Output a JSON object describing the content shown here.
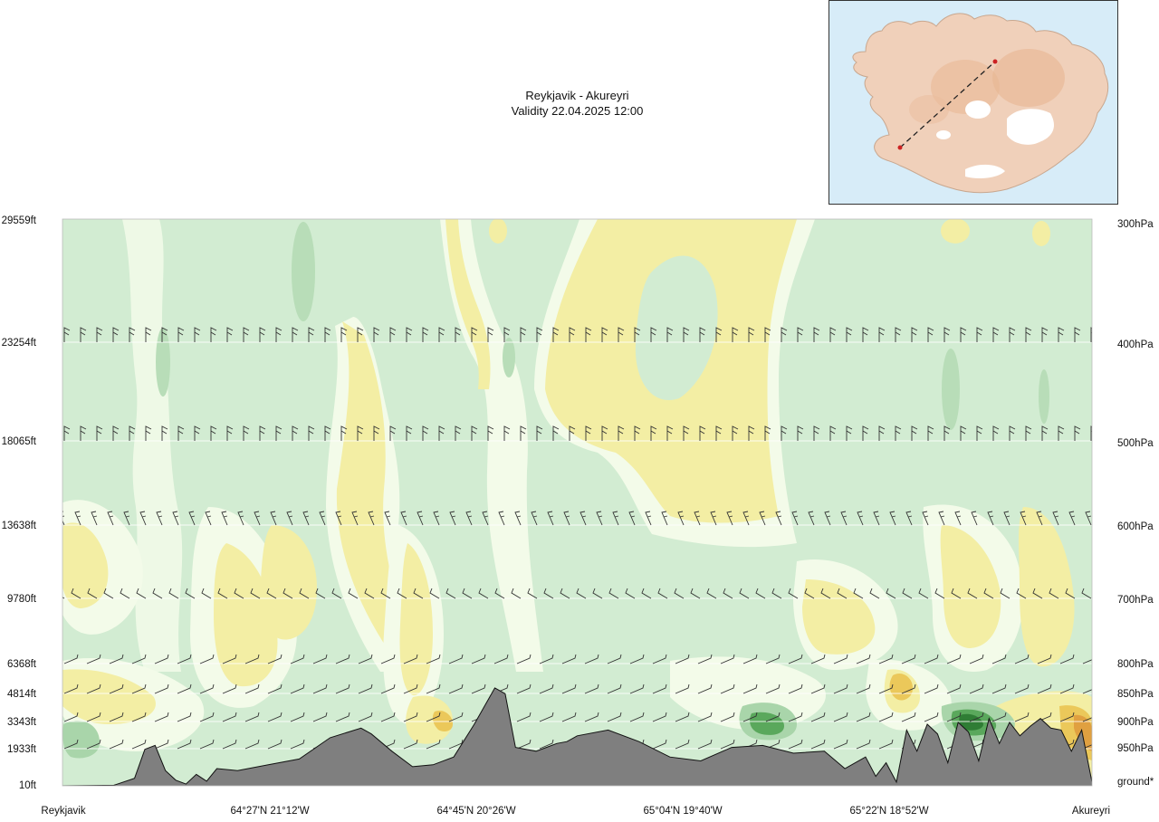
{
  "header": {
    "route": "Reykjavik - Akureyri",
    "validity": "Validity 22.04.2025 12:00"
  },
  "colors": {
    "background_field": "#d2ecd2",
    "light_band": "#f3fbe9",
    "white_band": "#fcfdf3",
    "yellow_band": "#f3eea4",
    "dark_green": "#a9d5aa",
    "terrain": "#7f7f7f",
    "map_water": "#d7ecf8",
    "map_land": "#f0d0ba",
    "route_marker": "#cc2222"
  },
  "inset_map": {
    "icon": "iceland-route-map"
  },
  "chart_data": {
    "type": "area",
    "title": "Reykjavik - Akureyri",
    "subtitle": "Validity 22.04.2025 12:00",
    "left_axis_labels": [
      "29559ft",
      "23254ft",
      "18065ft",
      "13638ft",
      "9780ft",
      "6368ft",
      "4814ft",
      "3343ft",
      "1933ft",
      "10ft"
    ],
    "right_axis_labels": [
      "300hPa",
      "400hPa",
      "500hPa",
      "600hPa",
      "700hPa",
      "800hPa",
      "850hPa",
      "900hPa",
      "950hPa",
      "ground*"
    ],
    "altitude_ft": [
      29559,
      23254,
      18065,
      13638,
      9780,
      6368,
      4814,
      3343,
      1933,
      10
    ],
    "x_labels": [
      "Reykjavik",
      "64°27'N 21°12'W",
      "64°45'N 20°26'W",
      "65°04'N 19°40'W",
      "65°22'N 18°52'W",
      "Akureyri"
    ],
    "terrain_profile": {
      "x_fraction": [
        0,
        0.05,
        0.07,
        0.08,
        0.09,
        0.1,
        0.11,
        0.12,
        0.13,
        0.14,
        0.15,
        0.17,
        0.2,
        0.23,
        0.26,
        0.29,
        0.3,
        0.32,
        0.34,
        0.36,
        0.38,
        0.4,
        0.42,
        0.43,
        0.44,
        0.46,
        0.47,
        0.48,
        0.49,
        0.5,
        0.53,
        0.56,
        0.59,
        0.62,
        0.65,
        0.68,
        0.71,
        0.74,
        0.76,
        0.78,
        0.79,
        0.8,
        0.81,
        0.82,
        0.83,
        0.84,
        0.85,
        0.86,
        0.87,
        0.88,
        0.89,
        0.9,
        0.91,
        0.92,
        0.93,
        0.94,
        0.95,
        0.96,
        0.97,
        0.98,
        0.99,
        1.0
      ],
      "elevation_ft": [
        10,
        40,
        400,
        1900,
        2100,
        800,
        300,
        100,
        600,
        250,
        900,
        800,
        1100,
        1400,
        2500,
        3000,
        2700,
        1800,
        1000,
        1100,
        1500,
        3200,
        5100,
        4800,
        2000,
        1800,
        2000,
        2200,
        2300,
        2600,
        2900,
        2300,
        1500,
        1300,
        2000,
        2100,
        1700,
        1800,
        900,
        1500,
        500,
        1200,
        200,
        2900,
        1800,
        3200,
        2700,
        1200,
        3300,
        2800,
        1300,
        3500,
        2200,
        3300,
        2600,
        3100,
        3500,
        3000,
        2900,
        1800,
        2900,
        200
      ]
    },
    "series": [
      {
        "name": "",
        "values": []
      }
    ],
    "grid": true
  }
}
